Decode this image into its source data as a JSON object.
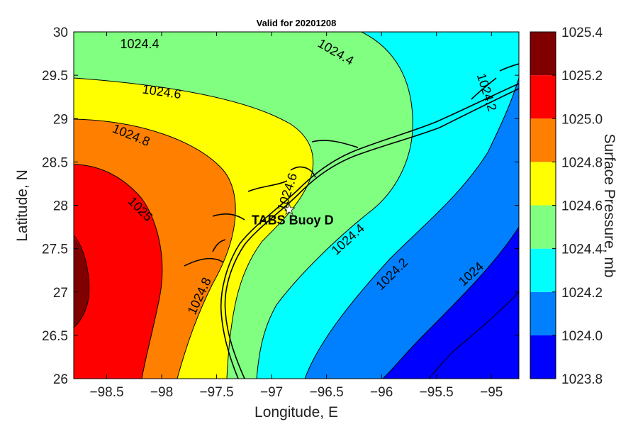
{
  "chart_data": {
    "type": "contour",
    "title": "Valid for 20201208",
    "xlabel": "Longitude, E",
    "ylabel": "Latitude, N",
    "colorbar_label": "Surface Pressure, mb",
    "xlim": [
      -98.8,
      -94.75
    ],
    "ylim": [
      26,
      30
    ],
    "xticks": [
      {
        "v": -98.5,
        "label": "−98.5"
      },
      {
        "v": -98,
        "label": "−98"
      },
      {
        "v": -97.5,
        "label": "−97.5"
      },
      {
        "v": -97,
        "label": "−97"
      },
      {
        "v": -96.5,
        "label": "−96.5"
      },
      {
        "v": -96,
        "label": "−96"
      },
      {
        "v": -95.5,
        "label": "−95.5"
      },
      {
        "v": -95,
        "label": "−95"
      }
    ],
    "yticks": [
      {
        "v": 26,
        "label": "26"
      },
      {
        "v": 26.5,
        "label": "26.5"
      },
      {
        "v": 27,
        "label": "27"
      },
      {
        "v": 27.5,
        "label": "27.5"
      },
      {
        "v": 28,
        "label": "28"
      },
      {
        "v": 28.5,
        "label": "28.5"
      },
      {
        "v": 29,
        "label": "29"
      },
      {
        "v": 29.5,
        "label": "29.5"
      },
      {
        "v": 30,
        "label": "30"
      }
    ],
    "colorbar": {
      "min": 1023.8,
      "max": 1025.4,
      "ticks": [
        "1023.8",
        "1024.0",
        "1024.2",
        "1024.4",
        "1024.6",
        "1024.8",
        "1025.0",
        "1025.2",
        "1025.4"
      ],
      "colors": [
        "#0000ff",
        "#0080ff",
        "#00ffff",
        "#80ff80",
        "#ffff00",
        "#ff8000",
        "#ff0000",
        "#800000"
      ]
    },
    "levels": [
      {
        "value": 1025.2,
        "color": "#800000"
      },
      {
        "value": 1025.0,
        "color": "#ff0000"
      },
      {
        "value": 1024.8,
        "color": "#ff8000"
      },
      {
        "value": 1024.6,
        "color": "#ffff00"
      },
      {
        "value": 1024.4,
        "color": "#80ff80"
      },
      {
        "value": 1024.2,
        "color": "#00ffff"
      },
      {
        "value": 1024.0,
        "color": "#0080ff"
      }
    ],
    "contour_labels": [
      {
        "text": "1024.4",
        "lon": -98.2,
        "lat": 29.85,
        "rot": 0
      },
      {
        "text": "1024.4",
        "lon": -96.42,
        "lat": 29.76,
        "rot": 30
      },
      {
        "text": "1024.6",
        "lon": -98.0,
        "lat": 29.3,
        "rot": 8
      },
      {
        "text": "1024.8",
        "lon": -98.28,
        "lat": 28.8,
        "rot": 22
      },
      {
        "text": "1025",
        "lon": -98.2,
        "lat": 27.95,
        "rot": 45
      },
      {
        "text": "1024.2",
        "lon": -95.05,
        "lat": 29.3,
        "rot": 72
      },
      {
        "text": "1024.6",
        "lon": -96.85,
        "lat": 28.15,
        "rot": -72
      },
      {
        "text": "1024.4",
        "lon": -96.3,
        "lat": 27.6,
        "rot": -42
      },
      {
        "text": "1024.2",
        "lon": -95.9,
        "lat": 27.2,
        "rot": -45
      },
      {
        "text": "1024",
        "lon": -95.18,
        "lat": 27.2,
        "rot": -42
      },
      {
        "text": "1024.8",
        "lon": -97.65,
        "lat": 26.95,
        "rot": -65
      }
    ],
    "marker": {
      "label": "TABS Buoy D",
      "lon": -96.84,
      "lat": 27.95
    }
  }
}
